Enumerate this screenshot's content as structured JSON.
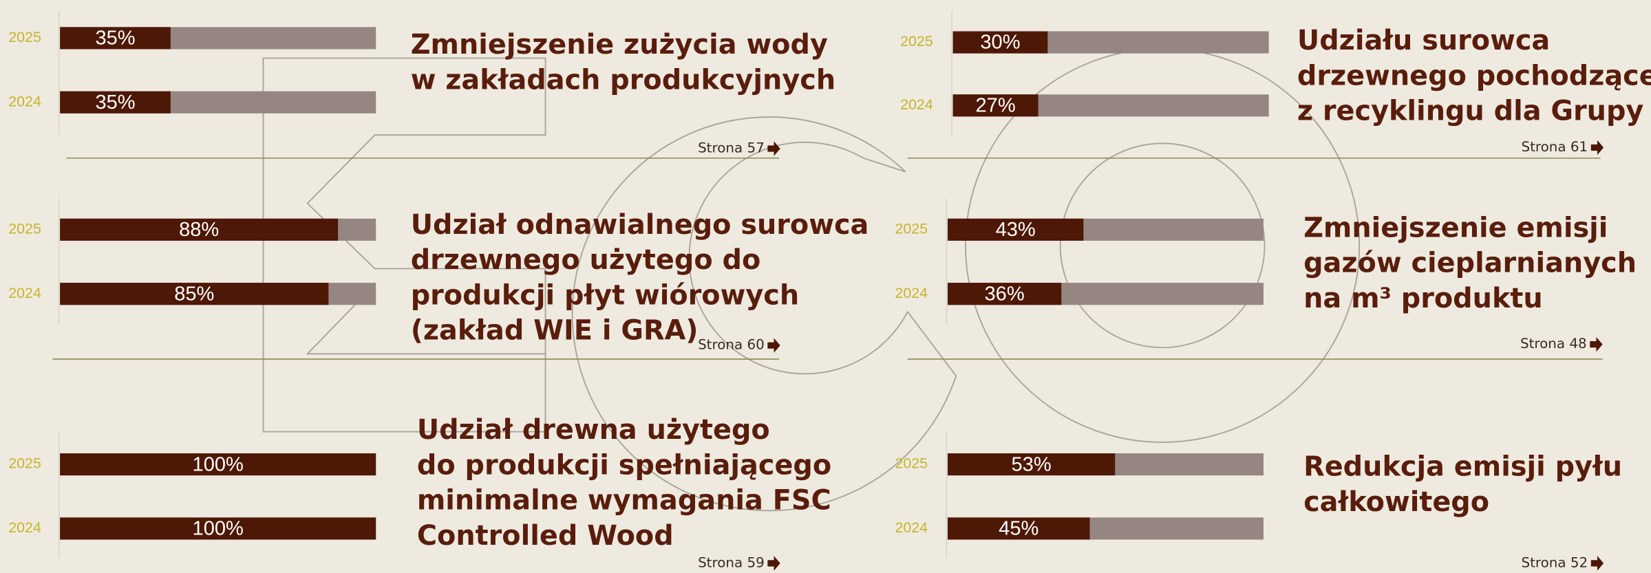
{
  "chart_data": [
    {
      "type": "bar",
      "title": [
        "Zmniejszenie zużycia wody",
        "w zakładach produkcyjnych"
      ],
      "categories": [
        "2025",
        "2024"
      ],
      "values": [
        35,
        35
      ],
      "value_labels": [
        "35%",
        "35%"
      ],
      "color": "#4d1805",
      "xlim": [
        0,
        100
      ],
      "link": "Strona 57"
    },
    {
      "type": "bar",
      "title": [
        "Udziału surowca",
        "drzewnego pochodzącego",
        "z recyklingu dla Grupy"
      ],
      "categories": [
        "2025",
        "2024"
      ],
      "values": [
        30,
        27
      ],
      "value_labels": [
        "30%",
        "27%"
      ],
      "color": "#4d1805",
      "xlim": [
        0,
        100
      ],
      "link": "Strona 61"
    },
    {
      "type": "bar",
      "title": [
        "Udział odnawialnego surowca",
        "drzewnego użytego do",
        "produkcji płyt wiórowych",
        "(zakład WIE i GRA)"
      ],
      "categories": [
        "2025",
        "2024"
      ],
      "values": [
        88,
        85
      ],
      "value_labels": [
        "88%",
        "85%"
      ],
      "color": "#4d1805",
      "xlim": [
        0,
        100
      ],
      "link": "Strona 60"
    },
    {
      "type": "bar",
      "title": [
        "Zmniejszenie emisji",
        "gazów cieplarnianych",
        "na m³ produktu"
      ],
      "categories": [
        "2025",
        "2024"
      ],
      "values": [
        43,
        36
      ],
      "value_labels": [
        "43%",
        "36%"
      ],
      "color": "#4d1805",
      "xlim": [
        0,
        100
      ],
      "link": "Strona 48"
    },
    {
      "type": "bar",
      "title": [
        "Udział drewna użytego",
        "do produkcji spełniającego",
        "minimalne wymagania FSC",
        "Controlled Wood"
      ],
      "categories": [
        "2025",
        "2024"
      ],
      "values": [
        100,
        100
      ],
      "value_labels": [
        "100%",
        "100%"
      ],
      "color": "#4d1805",
      "xlim": [
        0,
        100
      ],
      "link": "Strona 59"
    },
    {
      "type": "bar",
      "title": [
        "Redukcja emisji pyłu",
        "całkowitego"
      ],
      "categories": [
        "2025",
        "2024"
      ],
      "values": [
        53,
        45
      ],
      "value_labels": [
        "53%",
        "45%"
      ],
      "color": "#4d1805",
      "xlim": [
        0,
        100
      ],
      "link": "Strona 52"
    }
  ]
}
